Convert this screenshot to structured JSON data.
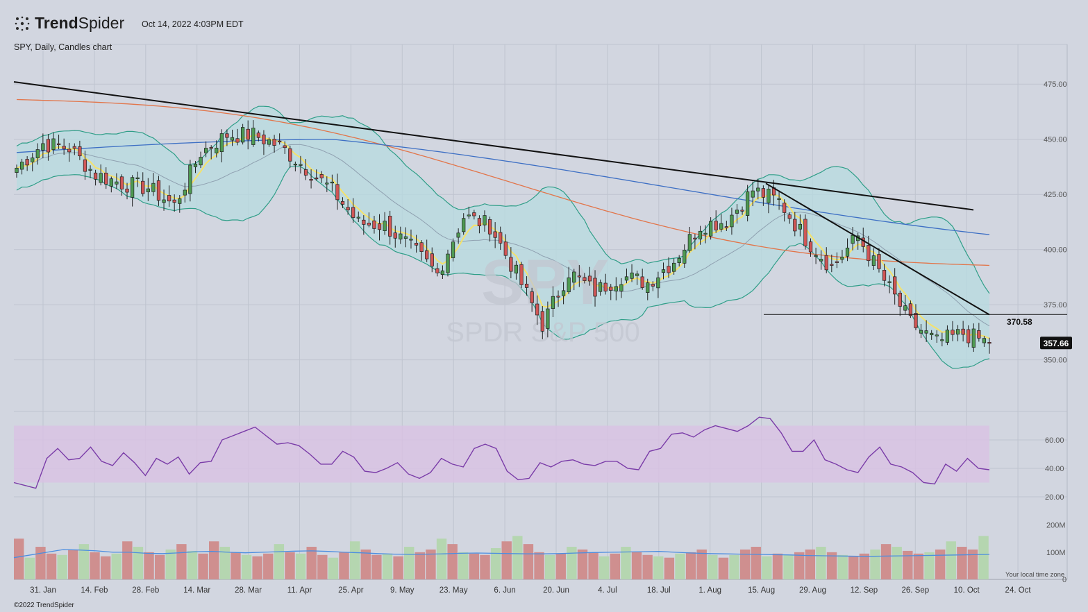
{
  "header": {
    "brand_bold": "Trend",
    "brand_light": "Spider",
    "timestamp": "Oct 14, 2022 4:03PM EDT",
    "subtitle": "SPY, Daily, Candles chart"
  },
  "footer": {
    "copyright": "©2022 TrendSpider",
    "timezone_note": "Your local time zone"
  },
  "watermark": {
    "symbol": "SPY",
    "name": "SPDR S&P 500"
  },
  "colors": {
    "background": "#d2d6e0",
    "grid": "#bfc4cf",
    "up": "#4e9a52",
    "down": "#d05656",
    "bb_fill": "#b7dbe0",
    "bb_line": "#2f9e88",
    "ema_fast": "#f5e26a",
    "ma_50": "#e2754a",
    "ma_200": "#3d6fc4",
    "rsi": "#7a3ca8",
    "rsi_band": "#d9c2e3",
    "vol_up": "#b5d6b0",
    "vol_down": "#cf8f8f",
    "vol_ma": "#4c8ee0"
  },
  "chart_data": [
    {
      "type": "candlestick",
      "panel": "price",
      "symbol": "SPY",
      "ylim": [
        337,
        493
      ],
      "y_ticks": [
        475,
        450,
        425,
        400,
        375,
        350
      ],
      "x_ticks": [
        "31. Jan",
        "14. Feb",
        "28. Feb",
        "14. Mar",
        "28. Mar",
        "11. Apr",
        "25. Apr",
        "9. May",
        "23. May",
        "6. Jun",
        "20. Jun",
        "4. Jul",
        "18. Jul",
        "1. Aug",
        "15. Aug",
        "29. Aug",
        "12. Sep",
        "26. Sep",
        "10. Oct",
        "24. Oct"
      ],
      "last_price": "357.66",
      "level_line": {
        "value": 370.58,
        "label": "370.58"
      },
      "close_by_week": [
        {
          "week": "20. Jan",
          "close": 437
        },
        {
          "week": "31. Jan",
          "close": 448
        },
        {
          "week": "7. Feb",
          "close": 446
        },
        {
          "week": "14. Feb",
          "close": 434
        },
        {
          "week": "21. Feb",
          "close": 430
        },
        {
          "week": "28. Feb",
          "close": 428
        },
        {
          "week": "7. Mar",
          "close": 420
        },
        {
          "week": "14. Mar",
          "close": 444
        },
        {
          "week": "21. Mar",
          "close": 452
        },
        {
          "week": "28. Mar",
          "close": 452
        },
        {
          "week": "4. Apr",
          "close": 447
        },
        {
          "week": "11. Apr",
          "close": 437
        },
        {
          "week": "18. Apr",
          "close": 427
        },
        {
          "week": "25. Apr",
          "close": 412
        },
        {
          "week": "2. May",
          "close": 411
        },
        {
          "week": "9. May",
          "close": 401
        },
        {
          "week": "16. May",
          "close": 389
        },
        {
          "week": "23. May",
          "close": 415
        },
        {
          "week": "30. May",
          "close": 411
        },
        {
          "week": "6. Jun",
          "close": 389
        },
        {
          "week": "13. Jun",
          "close": 366
        },
        {
          "week": "20. Jun",
          "close": 390
        },
        {
          "week": "27. Jun",
          "close": 381
        },
        {
          "week": "4. Jul",
          "close": 388
        },
        {
          "week": "11. Jul",
          "close": 385
        },
        {
          "week": "18. Jul",
          "close": 395
        },
        {
          "week": "25. Jul",
          "close": 411
        },
        {
          "week": "1. Aug",
          "close": 413
        },
        {
          "week": "8. Aug",
          "close": 427
        },
        {
          "week": "15. Aug",
          "close": 422
        },
        {
          "week": "22. Aug",
          "close": 405
        },
        {
          "week": "29. Aug",
          "close": 392
        },
        {
          "week": "5. Sep",
          "close": 406
        },
        {
          "week": "12. Sep",
          "close": 386
        },
        {
          "week": "19. Sep",
          "close": 367
        },
        {
          "week": "26. Sep",
          "close": 358
        },
        {
          "week": "3. Oct",
          "close": 362
        },
        {
          "week": "10. Oct",
          "close": 357.66
        }
      ],
      "indicators": [
        {
          "name": "Bollinger Bands (20, 2)"
        },
        {
          "name": "EMA (fast)"
        },
        {
          "name": "SMA 50"
        },
        {
          "name": "SMA 200"
        }
      ],
      "trendlines": [
        {
          "from": {
            "date": "3. Jan",
            "value": 476
          },
          "to": {
            "date": "17. Oct",
            "value": 418
          }
        },
        {
          "from": {
            "date": "16. Aug",
            "value": 430
          },
          "to": {
            "date": "14. Oct",
            "value": 370.5
          }
        }
      ]
    },
    {
      "type": "line",
      "panel": "rsi",
      "name": "RSI",
      "ylim": [
        0,
        80
      ],
      "y_ticks": [
        60,
        40,
        20
      ],
      "band": [
        30,
        70
      ],
      "values": [
        30,
        28,
        26,
        47,
        54,
        46,
        47,
        55,
        45,
        42,
        51,
        44,
        35,
        47,
        43,
        48,
        36,
        44,
        45,
        60,
        63,
        66,
        69,
        63,
        57,
        58,
        56,
        50,
        43,
        43,
        52,
        48,
        38,
        37,
        40,
        44,
        36,
        33,
        37,
        47,
        43,
        41,
        54,
        57,
        54,
        38,
        32,
        33,
        44,
        41,
        45,
        46,
        43,
        42,
        45,
        45,
        40,
        39,
        52,
        54,
        64,
        65,
        62,
        67,
        70,
        68,
        66,
        70,
        76,
        75,
        65,
        52,
        52,
        60,
        46,
        43,
        39,
        37,
        48,
        55,
        43,
        41,
        37,
        30,
        29,
        43,
        38,
        47,
        40,
        39
      ]
    },
    {
      "type": "bar",
      "panel": "volume",
      "name": "Volume",
      "ylim": [
        0,
        230
      ],
      "y_ticks": [
        "200M",
        "100M",
        "0"
      ],
      "values": [
        150,
        80,
        120,
        95,
        90,
        110,
        130,
        100,
        85,
        95,
        140,
        120,
        100,
        90,
        110,
        130,
        105,
        95,
        140,
        120,
        100,
        90,
        85,
        95,
        130,
        100,
        95,
        120,
        90,
        80,
        100,
        140,
        110,
        90,
        95,
        85,
        120,
        100,
        110,
        150,
        130,
        100,
        95,
        90,
        115,
        140,
        160,
        130,
        100,
        90,
        95,
        120,
        110,
        100,
        85,
        95,
        120,
        100,
        90,
        85,
        80,
        95,
        100,
        110,
        90,
        80,
        90,
        110,
        120,
        85,
        95,
        90,
        100,
        110,
        120,
        100,
        90,
        85,
        95,
        110,
        130,
        120,
        105,
        95,
        100,
        110,
        140,
        120,
        110,
        160
      ],
      "ma_values": [
        80,
        90,
        100,
        110,
        108,
        105,
        100,
        100,
        96,
        95,
        98,
        102,
        103,
        100,
        98,
        100,
        102,
        104,
        105,
        103,
        100,
        98,
        95,
        93,
        92,
        93,
        94,
        96,
        97,
        96,
        95,
        94,
        94,
        95,
        97,
        99,
        100,
        101,
        102,
        103,
        100,
        97,
        95,
        94,
        93,
        92,
        91,
        90,
        88,
        87,
        86,
        85,
        85,
        86,
        87,
        88,
        89,
        90,
        91,
        92
      ]
    }
  ]
}
